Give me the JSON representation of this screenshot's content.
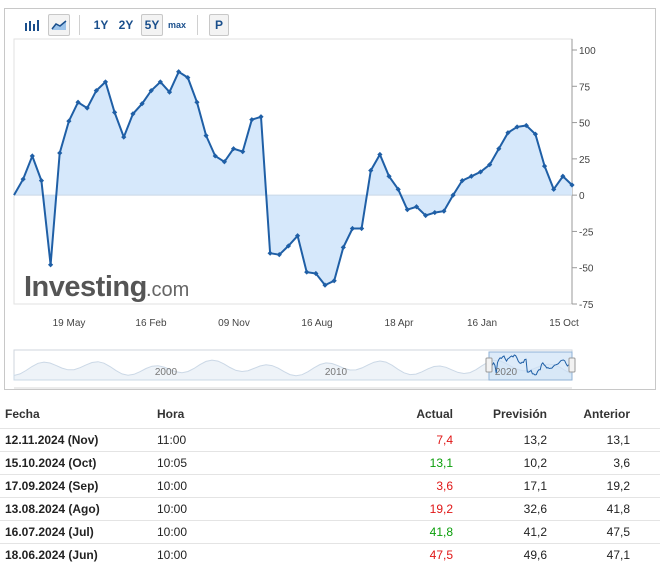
{
  "toolbar": {
    "bar_chart_icon": "bar-chart-icon",
    "area_chart_icon": "area-chart-icon",
    "ranges": [
      "1Y",
      "2Y",
      "5Y",
      "max"
    ],
    "active_range": "5Y",
    "p_label": "P"
  },
  "watermark": {
    "brand": "Investing",
    "suffix": ".com"
  },
  "colors": {
    "line": "#1f5fa6",
    "area": "#d6e8fb",
    "positive": "#0a9e0a",
    "negative": "#e01616",
    "link": "#1a4f8c"
  },
  "chart_data": {
    "type": "area",
    "y_ticks": [
      "100",
      "75",
      "50",
      "25",
      "0",
      "-25",
      "-50",
      "-75"
    ],
    "ylim": [
      -75,
      100
    ],
    "x_ticks": [
      "19 May",
      "16 Feb",
      "09 Nov",
      "16 Aug",
      "18 Apr",
      "16 Jan",
      "15 Oct"
    ],
    "values": [
      0,
      11,
      27,
      10,
      -48,
      29,
      51,
      64,
      60,
      72,
      78,
      57,
      40,
      56,
      63,
      72,
      78,
      71,
      85,
      81,
      64,
      41,
      27,
      23,
      32,
      30,
      52,
      54,
      -40,
      -41,
      -35,
      -28,
      -53,
      -54,
      -62,
      -59,
      -36,
      -23,
      -23,
      17,
      28,
      13,
      4,
      -10,
      -8,
      -14,
      -12,
      -11,
      0,
      10,
      13,
      16,
      21,
      32,
      43,
      47,
      48,
      42,
      20,
      4,
      13,
      7
    ],
    "navigator": {
      "labels": [
        "2000",
        "2010",
        "2020"
      ]
    }
  },
  "table": {
    "headers": {
      "date": "Fecha",
      "time": "Hora",
      "actual": "Actual",
      "forecast": "Previsión",
      "previous": "Anterior"
    },
    "rows": [
      {
        "date": "12.11.2024 (Nov)",
        "time": "11:00",
        "actual": "7,4",
        "forecast": "13,2",
        "previous": "13,1",
        "trend": "neg"
      },
      {
        "date": "15.10.2024 (Oct)",
        "time": "10:05",
        "actual": "13,1",
        "forecast": "10,2",
        "previous": "3,6",
        "trend": "pos"
      },
      {
        "date": "17.09.2024 (Sep)",
        "time": "10:00",
        "actual": "3,6",
        "forecast": "17,1",
        "previous": "19,2",
        "trend": "neg"
      },
      {
        "date": "13.08.2024 (Ago)",
        "time": "10:00",
        "actual": "19,2",
        "forecast": "32,6",
        "previous": "41,8",
        "trend": "neg"
      },
      {
        "date": "16.07.2024 (Jul)",
        "time": "10:00",
        "actual": "41,8",
        "forecast": "41,2",
        "previous": "47,5",
        "trend": "pos"
      },
      {
        "date": "18.06.2024 (Jun)",
        "time": "10:00",
        "actual": "47,5",
        "forecast": "49,6",
        "previous": "47,1",
        "trend": "neg"
      }
    ]
  }
}
